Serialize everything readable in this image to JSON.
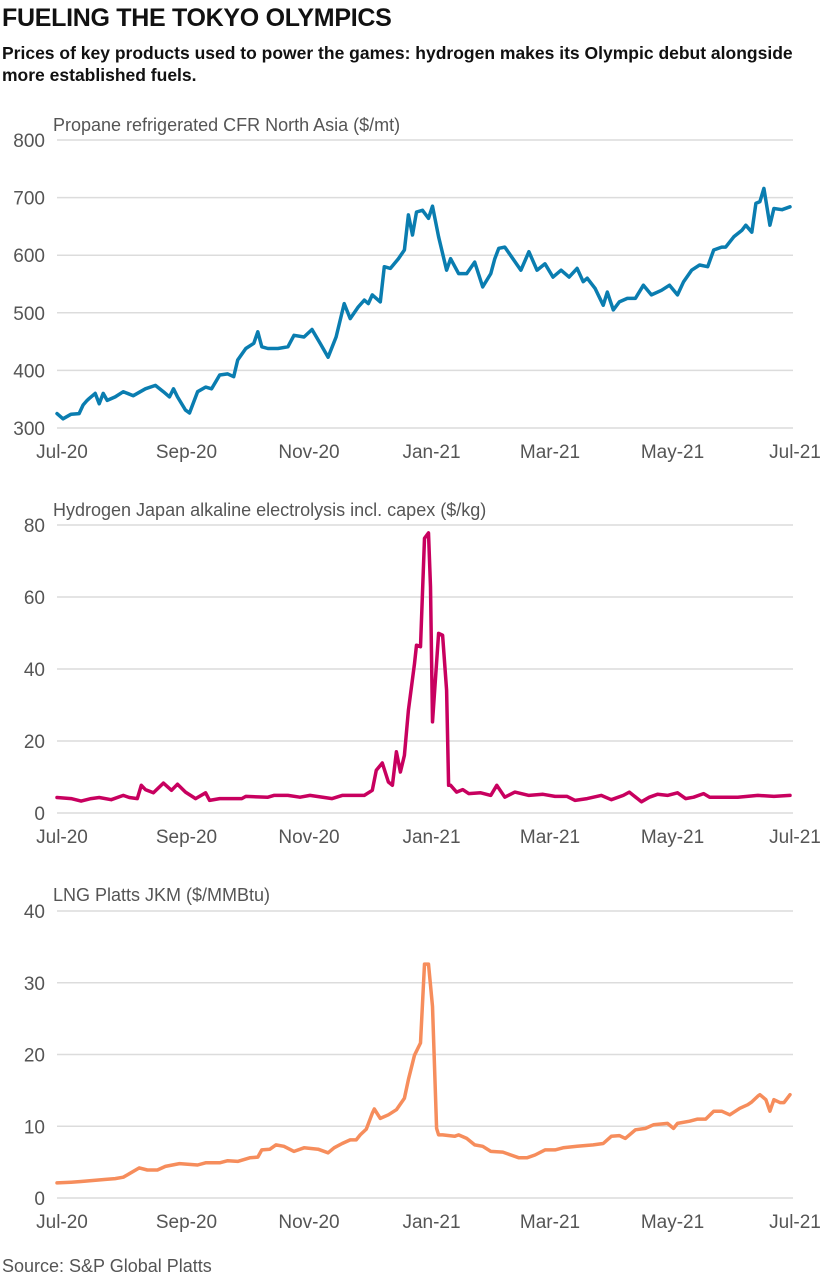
{
  "header": {
    "title": "FUELING THE TOKYO OLYMPICS",
    "subtitle": "Prices of key products used to power the games: hydrogen makes its Olympic debut alongside more established fuels."
  },
  "footer": {
    "source": "Source: S&P Global Platts"
  },
  "chart_data": [
    {
      "type": "line",
      "title": "Propane refrigerated CFR North Asia ($/mt)",
      "color": "#0a7db0",
      "ylim": [
        300,
        800
      ],
      "yticks": [
        300,
        400,
        500,
        600,
        700,
        800
      ],
      "xlim": [
        "2020-07-01",
        "2021-07-01"
      ],
      "xticks": [
        {
          "date": "2020-07-01",
          "label": "Jul-20"
        },
        {
          "date": "2020-09-01",
          "label": "Sep-20"
        },
        {
          "date": "2020-11-01",
          "label": "Nov-20"
        },
        {
          "date": "2021-01-01",
          "label": "Jan-21"
        },
        {
          "date": "2021-03-01",
          "label": "Mar-21"
        },
        {
          "date": "2021-05-01",
          "label": "May-21"
        },
        {
          "date": "2021-07-01",
          "label": "Jul-21"
        }
      ],
      "grid": true,
      "x": [
        "2020-07-01",
        "2020-07-04",
        "2020-07-08",
        "2020-07-12",
        "2020-07-14",
        "2020-07-16",
        "2020-07-17",
        "2020-07-20",
        "2020-07-22",
        "2020-07-24",
        "2020-07-26",
        "2020-07-30",
        "2020-08-03",
        "2020-08-08",
        "2020-08-14",
        "2020-08-19",
        "2020-08-23",
        "2020-08-26",
        "2020-08-28",
        "2020-08-30",
        "2020-09-03",
        "2020-09-05",
        "2020-09-09",
        "2020-09-13",
        "2020-09-16",
        "2020-09-20",
        "2020-09-24",
        "2020-09-27",
        "2020-09-29",
        "2020-10-03",
        "2020-10-07",
        "2020-10-09",
        "2020-10-11",
        "2020-10-14",
        "2020-10-19",
        "2020-10-24",
        "2020-10-27",
        "2020-11-01",
        "2020-11-05",
        "2020-11-09",
        "2020-11-13",
        "2020-11-17",
        "2020-11-21",
        "2020-11-24",
        "2020-11-28",
        "2020-12-01",
        "2020-12-03",
        "2020-12-05",
        "2020-12-09",
        "2020-12-11",
        "2020-12-14",
        "2020-12-18",
        "2020-12-21",
        "2020-12-23",
        "2020-12-25",
        "2020-12-27",
        "2020-12-30",
        "2021-01-02",
        "2021-01-04",
        "2021-01-07",
        "2021-01-11",
        "2021-01-13",
        "2021-01-17",
        "2021-01-21",
        "2021-01-25",
        "2021-01-29",
        "2021-02-02",
        "2021-02-04",
        "2021-02-06",
        "2021-02-09",
        "2021-02-13",
        "2021-02-17",
        "2021-02-21",
        "2021-02-25",
        "2021-03-01",
        "2021-03-05",
        "2021-03-09",
        "2021-03-13",
        "2021-03-17",
        "2021-03-20",
        "2021-03-22",
        "2021-03-26",
        "2021-03-30",
        "2021-04-01",
        "2021-04-04",
        "2021-04-07",
        "2021-04-11",
        "2021-04-15",
        "2021-04-19",
        "2021-04-23",
        "2021-04-28",
        "2021-05-02",
        "2021-05-06",
        "2021-05-09",
        "2021-05-13",
        "2021-05-17",
        "2021-05-21",
        "2021-05-24",
        "2021-05-28",
        "2021-05-30",
        "2021-06-03",
        "2021-06-07",
        "2021-06-09",
        "2021-06-12",
        "2021-06-14",
        "2021-06-16",
        "2021-06-18",
        "2021-06-21",
        "2021-06-23",
        "2021-06-27",
        "2021-07-01"
      ],
      "y": [
        325,
        316,
        324,
        325,
        340,
        348,
        351,
        360,
        342,
        360,
        348,
        354,
        363,
        356,
        368,
        374,
        363,
        354,
        368,
        354,
        331,
        326,
        363,
        371,
        368,
        392,
        394,
        389,
        418,
        438,
        447,
        467,
        441,
        438,
        438,
        441,
        461,
        458,
        471,
        447,
        423,
        458,
        516,
        490,
        510,
        522,
        516,
        531,
        519,
        580,
        577,
        594,
        609,
        670,
        635,
        675,
        678,
        664,
        685,
        632,
        574,
        594,
        568,
        568,
        588,
        545,
        568,
        594,
        612,
        614,
        594,
        574,
        606,
        574,
        585,
        562,
        574,
        562,
        577,
        554,
        560,
        542,
        513,
        536,
        505,
        519,
        525,
        525,
        548,
        531,
        539,
        548,
        531,
        554,
        574,
        583,
        580,
        609,
        614,
        614,
        632,
        643,
        652,
        640,
        690,
        693,
        716,
        652,
        681,
        679,
        684
      ]
    },
    {
      "type": "line",
      "title": "Hydrogen Japan alkaline electrolysis incl. capex ($/kg)",
      "color": "#c8005f",
      "ylim": [
        0,
        80
      ],
      "yticks": [
        0,
        20,
        40,
        60,
        80
      ],
      "xlim": [
        "2020-07-01",
        "2021-07-01"
      ],
      "xticks": [
        {
          "date": "2020-07-01",
          "label": "Jul-20"
        },
        {
          "date": "2020-09-01",
          "label": "Sep-20"
        },
        {
          "date": "2020-11-01",
          "label": "Nov-20"
        },
        {
          "date": "2021-01-01",
          "label": "Jan-21"
        },
        {
          "date": "2021-03-01",
          "label": "Mar-21"
        },
        {
          "date": "2021-05-01",
          "label": "May-21"
        },
        {
          "date": "2021-07-01",
          "label": "Jul-21"
        }
      ],
      "grid": true,
      "x": [
        "2020-07-01",
        "2020-07-08",
        "2020-07-13",
        "2020-07-18",
        "2020-07-22",
        "2020-07-28",
        "2020-08-03",
        "2020-08-06",
        "2020-08-10",
        "2020-08-12",
        "2020-08-14",
        "2020-08-18",
        "2020-08-23",
        "2020-08-27",
        "2020-08-30",
        "2020-09-03",
        "2020-09-08",
        "2020-09-13",
        "2020-09-15",
        "2020-09-20",
        "2020-10-01",
        "2020-10-03",
        "2020-10-14",
        "2020-10-17",
        "2020-10-24",
        "2020-10-30",
        "2020-11-04",
        "2020-11-15",
        "2020-11-20",
        "2020-12-01",
        "2020-12-05",
        "2020-12-07",
        "2020-12-10",
        "2020-12-13",
        "2020-12-15",
        "2020-12-17",
        "2020-12-19",
        "2020-12-21",
        "2020-12-23",
        "2020-12-26",
        "2020-12-27",
        "2020-12-29",
        "2020-12-31",
        "2021-01-02",
        "2021-01-03",
        "2021-01-04",
        "2021-01-07",
        "2021-01-09",
        "2021-01-11",
        "2021-01-12",
        "2021-01-13",
        "2021-01-16",
        "2021-01-19",
        "2021-01-22",
        "2021-01-28",
        "2021-02-02",
        "2021-02-05",
        "2021-02-09",
        "2021-02-14",
        "2021-02-21",
        "2021-02-28",
        "2021-03-06",
        "2021-03-12",
        "2021-03-16",
        "2021-03-22",
        "2021-03-29",
        "2021-04-03",
        "2021-04-09",
        "2021-04-12",
        "2021-04-18",
        "2021-04-22",
        "2021-04-26",
        "2021-05-01",
        "2021-05-06",
        "2021-05-10",
        "2021-05-14",
        "2021-05-19",
        "2021-05-22",
        "2021-06-05",
        "2021-06-15",
        "2021-06-23",
        "2021-07-01"
      ],
      "y": [
        4.3,
        4.0,
        3.3,
        4.0,
        4.3,
        3.7,
        4.9,
        4.3,
        4.0,
        7.7,
        6.5,
        5.6,
        8.3,
        6.3,
        8.0,
        5.8,
        4.0,
        5.6,
        3.5,
        4.0,
        4.0,
        4.6,
        4.4,
        4.9,
        4.9,
        4.4,
        4.9,
        4.0,
        4.9,
        4.9,
        6.3,
        11.9,
        13.9,
        8.6,
        7.7,
        17.0,
        11.4,
        16.0,
        28.5,
        41.5,
        46.6,
        46.2,
        76.3,
        77.8,
        62.8,
        25.3,
        49.9,
        49.4,
        34.1,
        7.7,
        7.7,
        5.8,
        6.5,
        5.4,
        5.6,
        4.9,
        7.7,
        4.4,
        5.8,
        4.9,
        5.2,
        4.6,
        4.6,
        3.5,
        4.0,
        4.9,
        3.7,
        4.9,
        5.8,
        3.1,
        4.4,
        5.2,
        4.9,
        5.6,
        4.0,
        4.4,
        5.4,
        4.4,
        4.4,
        4.9,
        4.6,
        4.9
      ]
    },
    {
      "type": "line",
      "title": "LNG Platts JKM ($/MMBtu)",
      "color": "#f68d5c",
      "ylim": [
        0,
        40
      ],
      "yticks": [
        0,
        10,
        20,
        30,
        40
      ],
      "xlim": [
        "2020-07-01",
        "2021-07-01"
      ],
      "xticks": [
        {
          "date": "2020-07-01",
          "label": "Jul-20"
        },
        {
          "date": "2020-09-01",
          "label": "Sep-20"
        },
        {
          "date": "2020-11-01",
          "label": "Nov-20"
        },
        {
          "date": "2021-01-01",
          "label": "Jan-21"
        },
        {
          "date": "2021-03-01",
          "label": "Mar-21"
        },
        {
          "date": "2021-05-01",
          "label": "May-21"
        },
        {
          "date": "2021-07-01",
          "label": "Jul-21"
        }
      ],
      "grid": true,
      "x": [
        "2020-07-01",
        "2020-07-08",
        "2020-07-13",
        "2020-07-26",
        "2020-07-30",
        "2020-08-03",
        "2020-08-11",
        "2020-08-15",
        "2020-08-20",
        "2020-08-24",
        "2020-08-31",
        "2020-09-09",
        "2020-09-13",
        "2020-09-20",
        "2020-09-24",
        "2020-09-29",
        "2020-10-05",
        "2020-10-09",
        "2020-10-11",
        "2020-10-15",
        "2020-10-18",
        "2020-10-22",
        "2020-10-27",
        "2020-11-01",
        "2020-11-08",
        "2020-11-13",
        "2020-11-16",
        "2020-11-20",
        "2020-11-24",
        "2020-11-27",
        "2020-11-29",
        "2020-12-02",
        "2020-12-05",
        "2020-12-06",
        "2020-12-09",
        "2020-12-13",
        "2020-12-17",
        "2020-12-21",
        "2020-12-23",
        "2020-12-26",
        "2020-12-29",
        "2020-12-31",
        "2021-01-02",
        "2021-01-04",
        "2021-01-06",
        "2021-01-07",
        "2021-01-09",
        "2021-01-15",
        "2021-01-17",
        "2021-01-21",
        "2021-01-25",
        "2021-01-29",
        "2021-02-02",
        "2021-02-08",
        "2021-02-12",
        "2021-02-16",
        "2021-02-20",
        "2021-02-24",
        "2021-03-01",
        "2021-03-06",
        "2021-03-10",
        "2021-03-17",
        "2021-03-25",
        "2021-03-30",
        "2021-04-03",
        "2021-04-07",
        "2021-04-10",
        "2021-04-15",
        "2021-04-20",
        "2021-04-24",
        "2021-05-01",
        "2021-05-04",
        "2021-05-06",
        "2021-05-12",
        "2021-05-16",
        "2021-05-20",
        "2021-05-24",
        "2021-05-28",
        "2021-06-01",
        "2021-06-06",
        "2021-06-10",
        "2021-06-12",
        "2021-06-15",
        "2021-06-16",
        "2021-06-19",
        "2021-06-21",
        "2021-06-23",
        "2021-06-26",
        "2021-06-28",
        "2021-07-01"
      ],
      "y": [
        2.1,
        2.2,
        2.3,
        2.6,
        2.7,
        2.9,
        4.2,
        3.9,
        3.9,
        4.4,
        4.8,
        4.6,
        4.9,
        4.9,
        5.2,
        5.1,
        5.6,
        5.7,
        6.7,
        6.8,
        7.4,
        7.2,
        6.5,
        7.0,
        6.8,
        6.3,
        7.0,
        7.6,
        8.1,
        8.1,
        8.8,
        9.6,
        11.8,
        12.4,
        11.1,
        11.6,
        12.3,
        13.9,
        16.5,
        19.9,
        21.6,
        32.6,
        32.6,
        26.7,
        9.7,
        8.8,
        8.8,
        8.6,
        8.8,
        8.3,
        7.4,
        7.2,
        6.5,
        6.4,
        6.0,
        5.6,
        5.6,
        6.0,
        6.7,
        6.7,
        7.0,
        7.2,
        7.4,
        7.6,
        8.6,
        8.7,
        8.3,
        9.5,
        9.7,
        10.2,
        10.4,
        9.7,
        10.4,
        10.7,
        11.0,
        11.0,
        12.1,
        12.1,
        11.6,
        12.5,
        13.0,
        13.4,
        14.2,
        14.4,
        13.7,
        12.1,
        13.7,
        13.3,
        13.3,
        14.4
      ]
    }
  ]
}
